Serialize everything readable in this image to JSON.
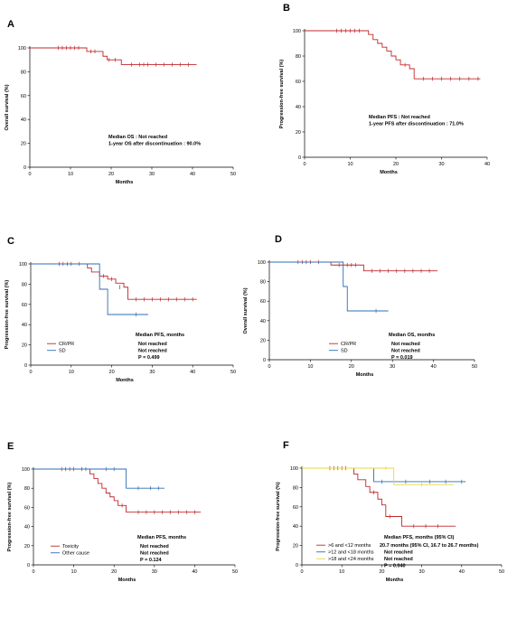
{
  "chart_data": [
    {
      "type": "line",
      "panel": "A",
      "xlabel": "Months",
      "ylabel": "Overall survival (%)",
      "xlim": [
        0,
        50
      ],
      "ylim": [
        0,
        100
      ],
      "xticks": [
        0,
        10,
        20,
        30,
        40,
        50
      ],
      "yticks": [
        0,
        20,
        40,
        60,
        80,
        100
      ],
      "annotations": [
        "Median OS : Not reached",
        "1-year OS after discontinuation : 90.0%"
      ],
      "legend": [],
      "series": [
        {
          "color": "#c0282b",
          "steps": [
            [
              0,
              100
            ],
            [
              13,
              100
            ],
            [
              14,
              97
            ],
            [
              17,
              97
            ],
            [
              18,
              93
            ],
            [
              19,
              90
            ],
            [
              22,
              90
            ],
            [
              22.5,
              86
            ],
            [
              41,
              86
            ]
          ],
          "censors": [
            [
              7,
              100
            ],
            [
              8,
              100
            ],
            [
              9,
              100
            ],
            [
              10,
              100
            ],
            [
              11,
              100
            ],
            [
              12,
              100
            ],
            [
              15,
              97
            ],
            [
              16,
              97
            ],
            [
              19.5,
              90
            ],
            [
              21,
              90
            ],
            [
              25,
              86
            ],
            [
              27,
              86
            ],
            [
              28,
              86
            ],
            [
              29,
              86
            ],
            [
              31,
              86
            ],
            [
              33,
              86
            ],
            [
              35,
              86
            ],
            [
              37,
              86
            ],
            [
              39,
              86
            ]
          ]
        }
      ]
    },
    {
      "type": "line",
      "panel": "B",
      "xlabel": "Months",
      "ylabel": "Progression-free survival (%)",
      "xlim": [
        0,
        40
      ],
      "ylim": [
        0,
        100
      ],
      "xticks": [
        0,
        10,
        20,
        30,
        40
      ],
      "yticks": [
        0,
        20,
        40,
        60,
        80,
        100
      ],
      "annotations": [
        "Median PFS : Not reached",
        "1-year PFS after discontinuation : 71.0%"
      ],
      "legend": [],
      "series": [
        {
          "color": "#c0282b",
          "steps": [
            [
              0,
              100
            ],
            [
              13,
              100
            ],
            [
              14,
              97
            ],
            [
              15,
              93
            ],
            [
              16,
              90
            ],
            [
              17,
              87
            ],
            [
              18,
              84
            ],
            [
              19,
              80
            ],
            [
              20,
              77
            ],
            [
              21,
              73
            ],
            [
              23,
              70
            ],
            [
              24,
              62
            ],
            [
              38.5,
              62
            ]
          ],
          "censors": [
            [
              7,
              100
            ],
            [
              8,
              100
            ],
            [
              9,
              100
            ],
            [
              10,
              100
            ],
            [
              11,
              100
            ],
            [
              12,
              100
            ],
            [
              22,
              73
            ],
            [
              26,
              62
            ],
            [
              28,
              62
            ],
            [
              30,
              62
            ],
            [
              32,
              62
            ],
            [
              34,
              62
            ],
            [
              36,
              62
            ],
            [
              38,
              62
            ]
          ]
        }
      ]
    },
    {
      "type": "line",
      "panel": "C",
      "xlabel": "Months",
      "ylabel": "Progression-free survival (%)",
      "xlim": [
        0,
        50
      ],
      "ylim": [
        0,
        100
      ],
      "xticks": [
        0,
        10,
        20,
        30,
        40,
        50
      ],
      "yticks": [
        0,
        20,
        40,
        60,
        80,
        100
      ],
      "annotations": [
        "Median PFS, months",
        "Not reached",
        "Not reached",
        "P = 0.499"
      ],
      "legend": [
        "CR/PR",
        "SD"
      ],
      "series": [
        {
          "name": "CR/PR",
          "color": "#c0282b",
          "steps": [
            [
              0,
              100
            ],
            [
              13,
              100
            ],
            [
              14,
              96
            ],
            [
              15,
              92
            ],
            [
              17,
              88
            ],
            [
              19,
              85
            ],
            [
              21,
              81
            ],
            [
              23,
              77
            ],
            [
              24,
              65
            ],
            [
              41,
              65
            ]
          ],
          "censors": [
            [
              7,
              100
            ],
            [
              8,
              100
            ],
            [
              9,
              100
            ],
            [
              10,
              100
            ],
            [
              12,
              100
            ],
            [
              18,
              88
            ],
            [
              20,
              85
            ],
            [
              22,
              77
            ],
            [
              26,
              65
            ],
            [
              28,
              65
            ],
            [
              30,
              65
            ],
            [
              32,
              65
            ],
            [
              34,
              65
            ],
            [
              36,
              65
            ],
            [
              38,
              65
            ],
            [
              40,
              65
            ]
          ]
        },
        {
          "name": "SD",
          "color": "#2f6db4",
          "steps": [
            [
              0,
              100
            ],
            [
              17,
              100
            ],
            [
              17,
              75
            ],
            [
              19,
              75
            ],
            [
              19,
              50
            ],
            [
              29,
              50
            ]
          ],
          "censors": [
            [
              26,
              50
            ]
          ]
        }
      ]
    },
    {
      "type": "line",
      "panel": "D",
      "xlabel": "Months",
      "ylabel": "Overall survival (%)",
      "xlim": [
        0,
        50
      ],
      "ylim": [
        0,
        100
      ],
      "xticks": [
        0,
        10,
        20,
        30,
        40,
        50
      ],
      "yticks": [
        0,
        20,
        40,
        60,
        80,
        100
      ],
      "annotations": [
        "Median OS, months",
        "Not reached",
        "Not reached",
        "P = 0.019"
      ],
      "legend": [
        "CR/PR",
        "SD"
      ],
      "series": [
        {
          "name": "CR/PR",
          "color": "#c0282b",
          "steps": [
            [
              0,
              100
            ],
            [
              14,
              100
            ],
            [
              15,
              97
            ],
            [
              22,
              97
            ],
            [
              23,
              91
            ],
            [
              41,
              91
            ]
          ],
          "censors": [
            [
              7,
              100
            ],
            [
              8,
              100
            ],
            [
              9,
              100
            ],
            [
              10,
              100
            ],
            [
              12,
              100
            ],
            [
              17,
              97
            ],
            [
              19,
              97
            ],
            [
              20,
              97
            ],
            [
              21,
              97
            ],
            [
              25,
              91
            ],
            [
              27,
              91
            ],
            [
              29,
              91
            ],
            [
              31,
              91
            ],
            [
              33,
              91
            ],
            [
              35,
              91
            ],
            [
              37,
              91
            ],
            [
              39,
              91
            ]
          ]
        },
        {
          "name": "SD",
          "color": "#2f6db4",
          "steps": [
            [
              0,
              100
            ],
            [
              18,
              100
            ],
            [
              18,
              75
            ],
            [
              19,
              75
            ],
            [
              19,
              50
            ],
            [
              29,
              50
            ]
          ],
          "censors": [
            [
              26,
              50
            ]
          ]
        }
      ]
    },
    {
      "type": "line",
      "panel": "E",
      "xlabel": "Months",
      "ylabel": "Progression-free survival (%)",
      "xlim": [
        0,
        50
      ],
      "ylim": [
        0,
        100
      ],
      "xticks": [
        0,
        10,
        20,
        30,
        40,
        50
      ],
      "yticks": [
        0,
        20,
        40,
        60,
        80,
        100
      ],
      "annotations": [
        "Median PFS, months",
        "Not reached",
        "Not reached",
        "P = 0.124"
      ],
      "legend": [
        "Toxicity",
        "Other cause"
      ],
      "series": [
        {
          "name": "Toxicity",
          "color": "#c0282b",
          "steps": [
            [
              0,
              100
            ],
            [
              13,
              100
            ],
            [
              14,
              95
            ],
            [
              15,
              90
            ],
            [
              16,
              85
            ],
            [
              17,
              80
            ],
            [
              18,
              75
            ],
            [
              19,
              71
            ],
            [
              20,
              67
            ],
            [
              21,
              62
            ],
            [
              23,
              55
            ],
            [
              41.5,
              55
            ]
          ],
          "censors": [
            [
              7,
              100
            ],
            [
              8,
              100
            ],
            [
              9,
              100
            ],
            [
              10,
              100
            ],
            [
              12,
              100
            ],
            [
              22,
              62
            ],
            [
              26,
              55
            ],
            [
              28,
              55
            ],
            [
              30,
              55
            ],
            [
              32,
              55
            ],
            [
              34,
              55
            ],
            [
              36,
              55
            ],
            [
              38,
              55
            ],
            [
              40,
              55
            ]
          ]
        },
        {
          "name": "Other cause",
          "color": "#2f6db4",
          "steps": [
            [
              0,
              100
            ],
            [
              22.5,
              100
            ],
            [
              23,
              80
            ],
            [
              32.5,
              80
            ]
          ],
          "censors": [
            [
              13,
              100
            ],
            [
              18,
              100
            ],
            [
              20,
              100
            ],
            [
              26,
              80
            ],
            [
              29,
              80
            ],
            [
              31,
              80
            ]
          ]
        }
      ]
    },
    {
      "type": "line",
      "panel": "F",
      "xlabel": "Months",
      "ylabel": "Progression-free survival (%)",
      "xlim": [
        0,
        50
      ],
      "ylim": [
        0,
        100
      ],
      "xticks": [
        0,
        10,
        20,
        30,
        40,
        50
      ],
      "yticks": [
        0,
        20,
        40,
        60,
        80,
        100
      ],
      "annotations": [
        "Median PFS, months (95% CI)",
        "20.7 months (95% CI, 16.7 to 26.7 months)",
        "Not reached",
        "Not reached",
        "P = 0.040"
      ],
      "legend": [
        ">6 and <12 months",
        ">12 and <18 months",
        ">18 and <24 months"
      ],
      "series": [
        {
          "name": ">6 and <12 months",
          "color": "#c0282b",
          "steps": [
            [
              0,
              100
            ],
            [
              12,
              100
            ],
            [
              13,
              94
            ],
            [
              14,
              88
            ],
            [
              16,
              81
            ],
            [
              17,
              75
            ],
            [
              19,
              68
            ],
            [
              20,
              62
            ],
            [
              21,
              50
            ],
            [
              24,
              50
            ],
            [
              25,
              40
            ],
            [
              38.5,
              40
            ]
          ],
          "censors": [
            [
              7,
              100
            ],
            [
              8,
              100
            ],
            [
              9,
              100
            ],
            [
              10,
              100
            ],
            [
              11,
              100
            ],
            [
              18,
              75
            ],
            [
              22,
              50
            ],
            [
              28,
              40
            ],
            [
              31,
              40
            ],
            [
              34,
              40
            ]
          ]
        },
        {
          "name": ">12 and <18 months",
          "color": "#2f6db4",
          "steps": [
            [
              0,
              100
            ],
            [
              17,
              100
            ],
            [
              18,
              86
            ],
            [
              41,
              86
            ]
          ],
          "censors": [
            [
              20,
              86
            ],
            [
              26,
              86
            ],
            [
              32,
              86
            ],
            [
              36,
              86
            ],
            [
              40,
              86
            ]
          ]
        },
        {
          "name": ">18 and <24 months",
          "color": "#e8d83a",
          "steps": [
            [
              0,
              100
            ],
            [
              22,
              100
            ],
            [
              23,
              83
            ],
            [
              38,
              83
            ]
          ],
          "censors": [
            [
              21,
              100
            ],
            [
              30,
              83
            ]
          ]
        }
      ]
    }
  ]
}
